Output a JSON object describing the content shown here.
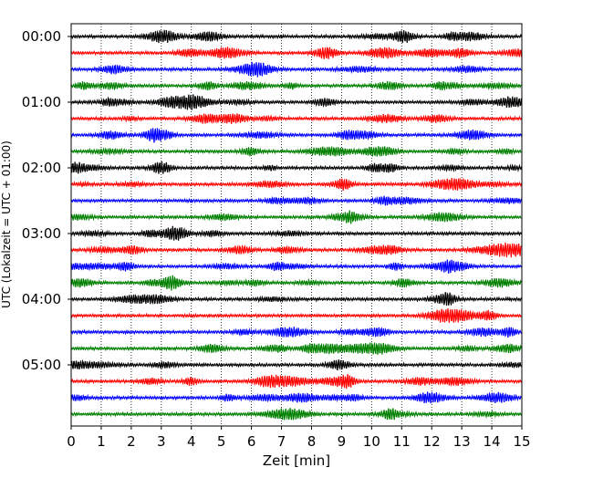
{
  "chart_data": {
    "type": "line",
    "title": "",
    "xlabel": "Zeit  [min]",
    "ylabel": "UTC (Lokalzeit = UTC + 01:00)",
    "xlim": [
      0,
      15
    ],
    "x_ticks": [
      "0",
      "1",
      "2",
      "3",
      "4",
      "5",
      "6",
      "7",
      "8",
      "9",
      "10",
      "11",
      "12",
      "13",
      "14",
      "15"
    ],
    "y_ticks": [
      "00:00",
      "01:00",
      "02:00",
      "03:00",
      "04:00",
      "05:00"
    ],
    "trace_interval_min": 15,
    "trace_count": 24,
    "trace_colors": [
      "#000000",
      "#ff0000",
      "#0000ff",
      "#008000"
    ],
    "vertical_grid": "dotted at every minute",
    "legend": "none"
  }
}
